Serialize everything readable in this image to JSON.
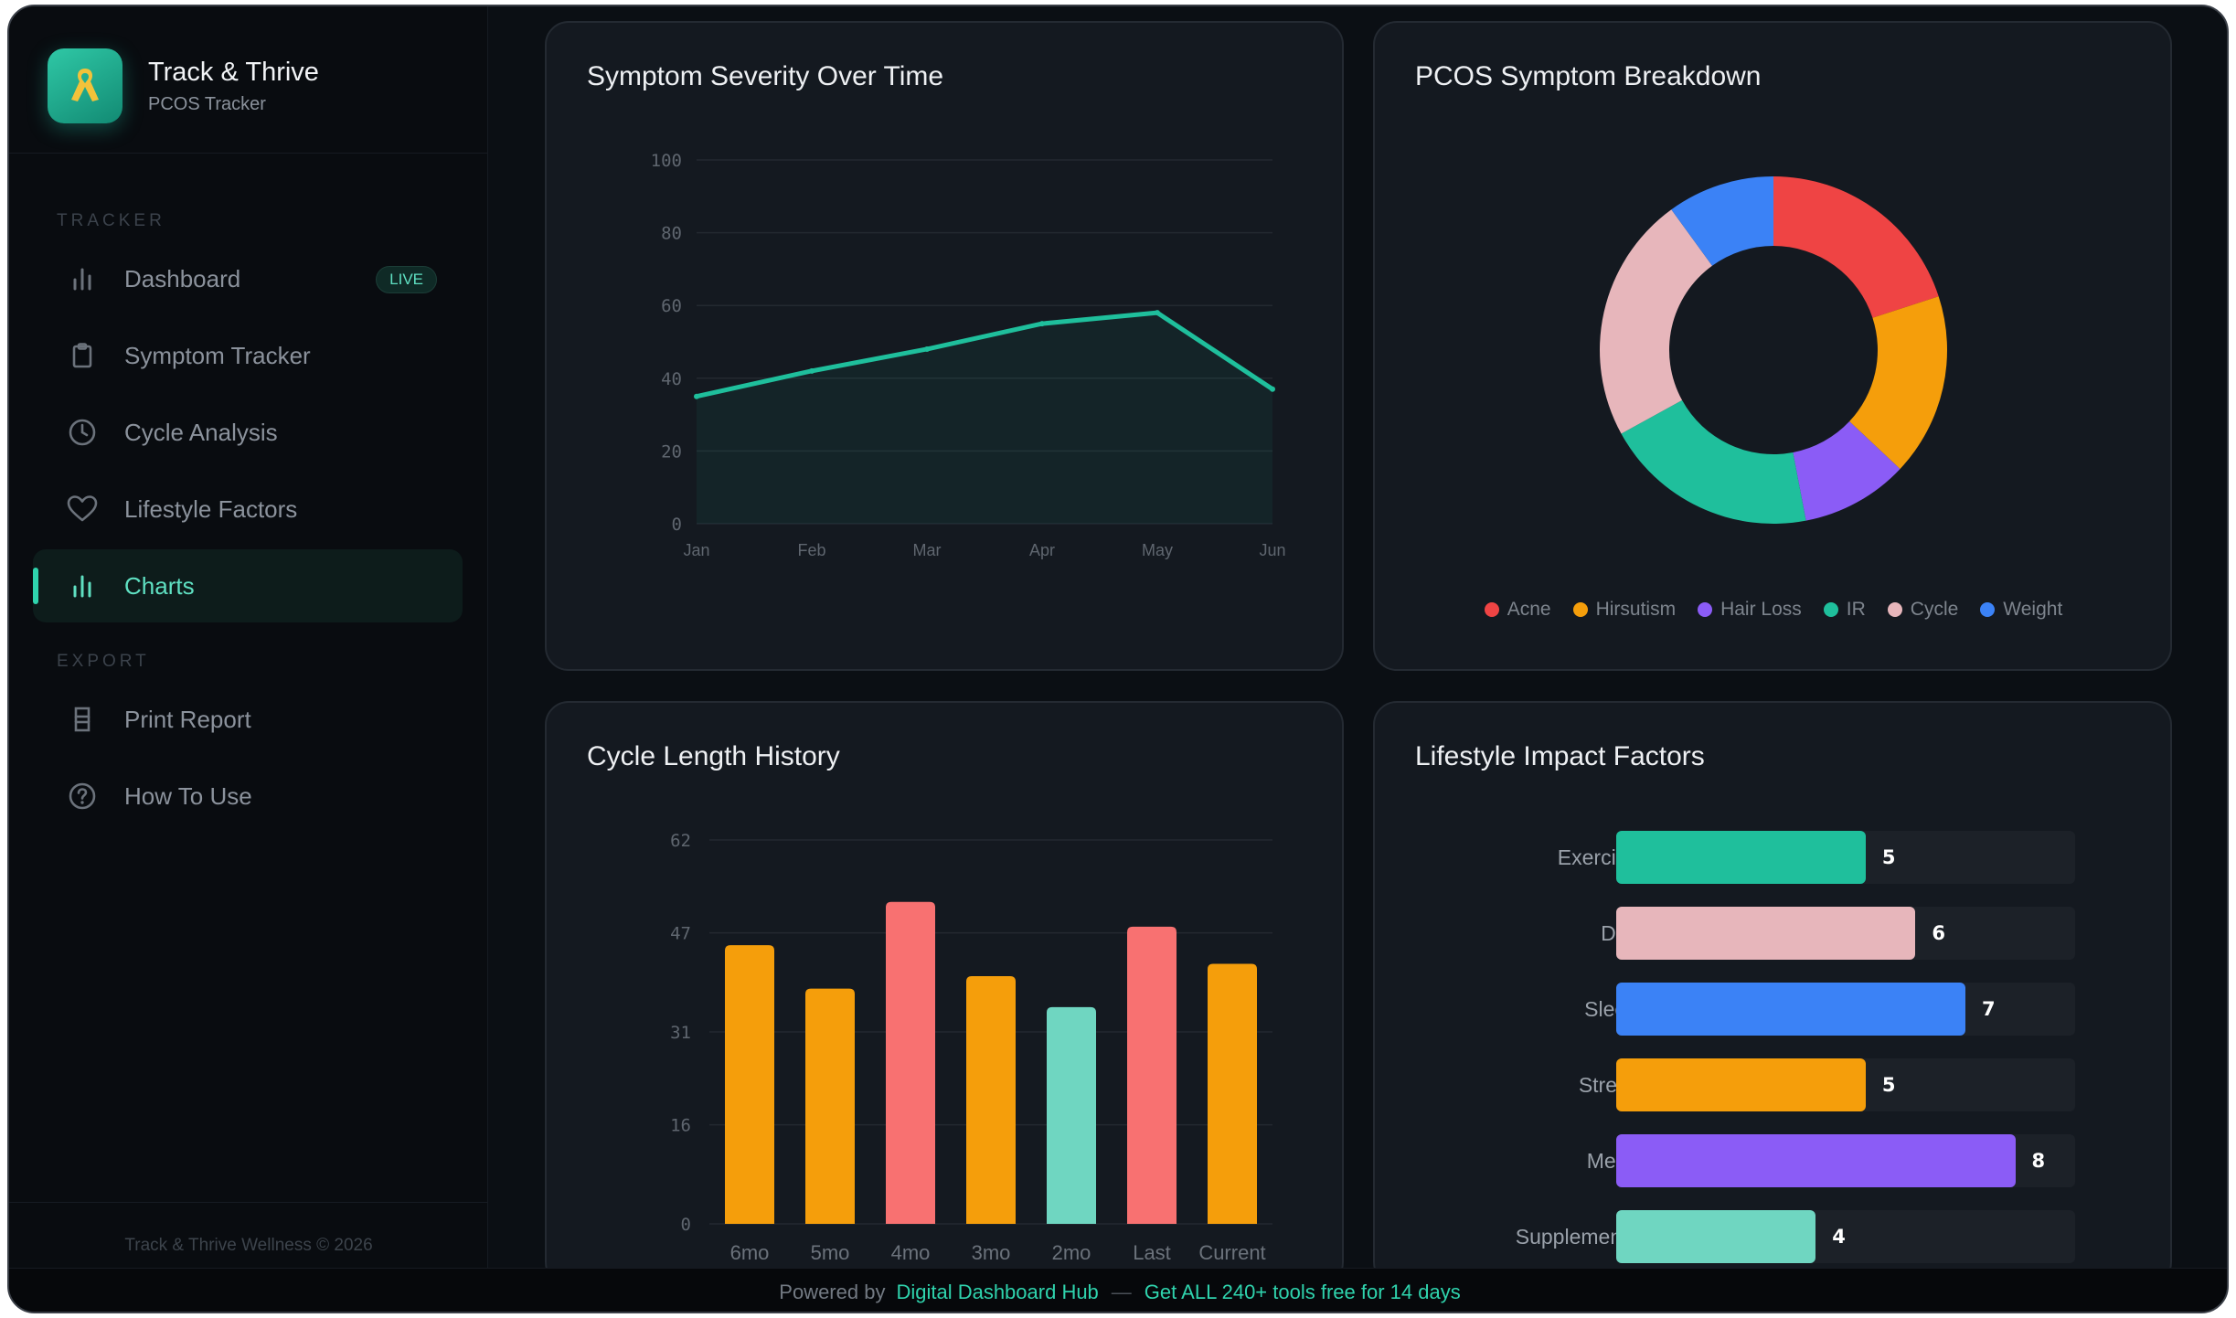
{
  "brand": {
    "title": "Track & Thrive",
    "subtitle": "PCOS Tracker"
  },
  "sidebar": {
    "section_tracker": "TRACKER",
    "section_export": "EXPORT",
    "items": [
      {
        "label": "Dashboard",
        "icon": "bar-chart-icon",
        "badge": "LIVE"
      },
      {
        "label": "Symptom Tracker",
        "icon": "clipboard-icon"
      },
      {
        "label": "Cycle Analysis",
        "icon": "clock-icon"
      },
      {
        "label": "Lifestyle Factors",
        "icon": "heart-icon"
      },
      {
        "label": "Charts",
        "icon": "bar-chart-icon",
        "active": true
      }
    ],
    "export_items": [
      {
        "label": "Print Report",
        "icon": "printer-icon"
      },
      {
        "label": "How To Use",
        "icon": "help-circle-icon"
      }
    ],
    "footer": "Track & Thrive Wellness © 2026"
  },
  "cards": {
    "severity_title": "Symptom Severity Over Time",
    "breakdown_title": "PCOS Symptom Breakdown",
    "cycle_title": "Cycle Length History",
    "lifestyle_title": "Lifestyle Impact Factors"
  },
  "chart_data": [
    {
      "type": "area",
      "title": "Symptom Severity Over Time",
      "categories": [
        "Jan",
        "Feb",
        "Mar",
        "Apr",
        "May",
        "Jun"
      ],
      "values": [
        35,
        42,
        48,
        55,
        58,
        37
      ],
      "ylim": [
        0,
        100
      ],
      "yticks": [
        0,
        20,
        40,
        60,
        80,
        100
      ],
      "color": "#1fbf9c",
      "grid": true
    },
    {
      "type": "pie",
      "title": "PCOS Symptom Breakdown",
      "donut": true,
      "categories": [
        "Acne",
        "Hirsutism",
        "Hair Loss",
        "IR",
        "Cycle",
        "Weight"
      ],
      "values": [
        20,
        17,
        10,
        20,
        23,
        10
      ],
      "colors": [
        "#ef4444",
        "#f59e0b",
        "#8b5cf6",
        "#1fbf9c",
        "#e7b6bb",
        "#3b82f6"
      ],
      "legend": "bottom"
    },
    {
      "type": "bar",
      "title": "Cycle Length History",
      "categories": [
        "6mo",
        "5mo",
        "4mo",
        "3mo",
        "2mo",
        "Last",
        "Current"
      ],
      "values": [
        45,
        38,
        52,
        40,
        35,
        48,
        42
      ],
      "colors": [
        "#f59e0b",
        "#f59e0b",
        "#f87171",
        "#f59e0b",
        "#6fd6c1",
        "#f87171",
        "#f59e0b"
      ],
      "ylim": [
        0,
        62
      ],
      "yticks": [
        0,
        16,
        31,
        47,
        62
      ],
      "grid": true
    },
    {
      "type": "bar",
      "orientation": "horizontal",
      "title": "Lifestyle Impact Factors",
      "categories": [
        "Exercise",
        "Diet",
        "Sleep",
        "Stress",
        "Meds",
        "Supplements"
      ],
      "values": [
        5,
        6,
        7,
        5,
        8,
        4
      ],
      "colors": [
        "#1fbf9c",
        "#e7b6bb",
        "#3b82f6",
        "#f59e0b",
        "#8b5cf6",
        "#6fd6c1"
      ],
      "xlim": [
        0,
        9.2
      ]
    }
  ],
  "bottombar": {
    "powered_by": "Powered by",
    "hub": "Digital Dashboard Hub",
    "separator": "—",
    "promo": "Get ALL 240+ tools free for 14 days"
  }
}
